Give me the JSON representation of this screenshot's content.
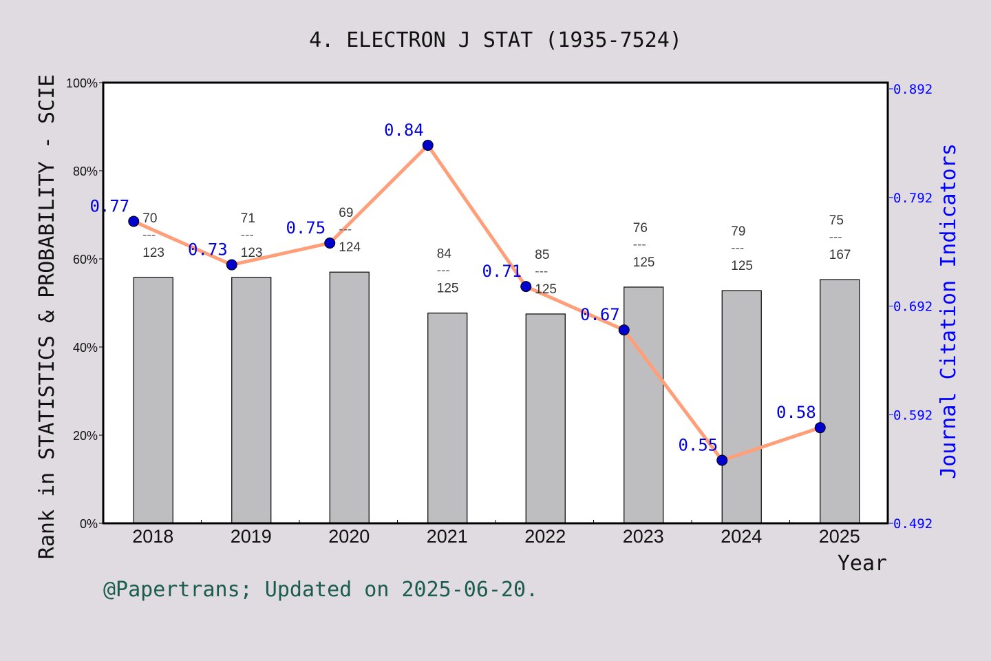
{
  "chart_data": {
    "type": "bar+line",
    "title": "4. ELECTRON J STAT (1935-7524)",
    "xlabel": "Year",
    "ylabel_left": "Rank in STATISTICS & PROBABILITY - SCIE",
    "ylabel_right": "Journal Citation Indicators",
    "categories": [
      "2018",
      "2019",
      "2020",
      "2021",
      "2022",
      "2023",
      "2024",
      "2025"
    ],
    "bars": {
      "values_percent": [
        55.8,
        55.8,
        57.0,
        47.7,
        47.5,
        53.6,
        52.8,
        55.3
      ],
      "rank_labels": [
        {
          "rank": "70",
          "total": "123"
        },
        {
          "rank": "71",
          "total": "123"
        },
        {
          "rank": "69",
          "total": "124"
        },
        {
          "rank": "84",
          "total": "125"
        },
        {
          "rank": "85",
          "total": "125"
        },
        {
          "rank": "76",
          "total": "125"
        },
        {
          "rank": "79",
          "total": "125"
        },
        {
          "rank": "75",
          "total": "167"
        }
      ],
      "separator": "---",
      "color": "#b8b9bb"
    },
    "line": {
      "values": [
        0.77,
        0.73,
        0.75,
        0.84,
        0.71,
        0.67,
        0.55,
        0.58
      ],
      "labels": [
        "0.77",
        "0.73",
        "0.75",
        "0.84",
        "0.71",
        "0.67",
        "0.55",
        "0.58"
      ],
      "line_color": "#ff9f7a",
      "marker_color": "#0000cc"
    },
    "left_axis": {
      "ylim": [
        0,
        100
      ],
      "ticks": [
        "0%",
        "20%",
        "40%",
        "60%",
        "80%",
        "100%"
      ]
    },
    "right_axis": {
      "ylim": [
        0.492,
        0.892
      ],
      "ticks": [
        "0.492",
        "0.592",
        "0.692",
        "0.792",
        "0.892"
      ],
      "color": "#0000ff"
    },
    "grid": false
  },
  "footer": "@Papertrans; Updated on 2025-06-20."
}
